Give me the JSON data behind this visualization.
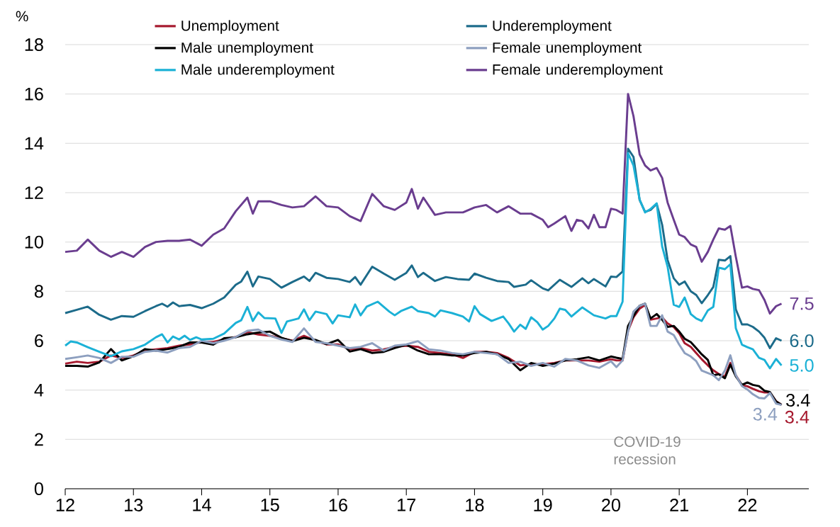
{
  "chart_data": {
    "type": "line",
    "ylabel": "%",
    "xlim": [
      12,
      22.9
    ],
    "ylim": [
      0,
      18
    ],
    "xticks": [
      12,
      13,
      14,
      15,
      16,
      17,
      18,
      19,
      20,
      21,
      22
    ],
    "yticks": [
      0,
      2,
      4,
      6,
      8,
      10,
      12,
      14,
      16,
      18
    ],
    "grid": "y",
    "legend": "top",
    "annotations": [
      "COVID-19 recession"
    ],
    "series": [
      {
        "name": "Unemployment",
        "color": "#a6192e",
        "x": [
          12,
          12.17,
          12.33,
          12.5,
          12.67,
          12.83,
          13,
          13.17,
          13.33,
          13.5,
          13.67,
          13.83,
          14,
          14.17,
          14.33,
          14.5,
          14.67,
          14.83,
          15,
          15.17,
          15.33,
          15.5,
          15.67,
          15.83,
          16,
          16.17,
          16.33,
          16.5,
          16.67,
          16.83,
          17,
          17.17,
          17.33,
          17.5,
          17.67,
          17.83,
          18,
          18.17,
          18.33,
          18.5,
          18.67,
          18.83,
          19,
          19.17,
          19.33,
          19.5,
          19.67,
          19.83,
          20,
          20.08,
          20.17,
          20.25,
          20.33,
          20.42,
          20.5,
          20.58,
          20.67,
          20.75,
          20.83,
          20.92,
          21,
          21.08,
          21.17,
          21.25,
          21.33,
          21.42,
          21.5,
          21.58,
          21.67,
          21.75,
          21.83,
          21.92,
          22,
          22.08,
          22.17,
          22.25,
          22.33,
          22.42,
          22.5
        ],
        "values": [
          5.07,
          5.15,
          5.1,
          5.15,
          5.4,
          5.3,
          5.4,
          5.6,
          5.65,
          5.7,
          5.8,
          5.85,
          5.95,
          5.95,
          6.05,
          6.15,
          6.35,
          6.25,
          6.2,
          6.1,
          6.0,
          6.2,
          6.0,
          5.85,
          5.85,
          5.65,
          5.7,
          5.6,
          5.65,
          5.75,
          5.8,
          5.75,
          5.55,
          5.5,
          5.45,
          5.3,
          5.55,
          5.55,
          5.5,
          5.3,
          5.0,
          5.05,
          5.05,
          5.1,
          5.2,
          5.2,
          5.2,
          5.15,
          5.25,
          5.2,
          5.2,
          6.4,
          6.95,
          7.3,
          7.45,
          6.85,
          6.9,
          6.95,
          6.7,
          6.55,
          6.3,
          5.9,
          5.75,
          5.5,
          5.25,
          5.0,
          4.8,
          4.65,
          4.55,
          5.1,
          4.6,
          4.2,
          4.15,
          4.05,
          3.95,
          3.9,
          3.9,
          3.55,
          3.4
        ],
        "value_labels": [
          null,
          null,
          null,
          null,
          null,
          null,
          null,
          null,
          null,
          null,
          null,
          null,
          null,
          null,
          null,
          null,
          null,
          null,
          null,
          null,
          null,
          null,
          null,
          null,
          null,
          null,
          null,
          null,
          null,
          null,
          null,
          null,
          null,
          null,
          null,
          null,
          null,
          null,
          null,
          null,
          null,
          null,
          null,
          null,
          null,
          null,
          null,
          null,
          null,
          null,
          null,
          null,
          null,
          null,
          null,
          null,
          null,
          null,
          null,
          null,
          null,
          null,
          null,
          null,
          null,
          null,
          null,
          null,
          null,
          null,
          null,
          null,
          null,
          null,
          null,
          null,
          null,
          null,
          "3.4"
        ]
      },
      {
        "name": "Underemployment",
        "color": "#1c6b8a",
        "x": [
          12,
          12.17,
          12.33,
          12.5,
          12.67,
          12.83,
          13,
          13.17,
          13.33,
          13.42,
          13.5,
          13.58,
          13.67,
          13.83,
          14,
          14.17,
          14.33,
          14.5,
          14.58,
          14.67,
          14.75,
          14.83,
          15,
          15.17,
          15.33,
          15.5,
          15.58,
          15.67,
          15.83,
          16,
          16.17,
          16.25,
          16.33,
          16.5,
          16.67,
          16.83,
          17,
          17.08,
          17.17,
          17.25,
          17.42,
          17.58,
          17.75,
          17.92,
          18,
          18.17,
          18.33,
          18.5,
          18.58,
          18.75,
          18.83,
          19,
          19.08,
          19.25,
          19.42,
          19.58,
          19.67,
          19.75,
          19.92,
          20,
          20.08,
          20.17,
          20.25,
          20.33,
          20.42,
          20.5,
          20.58,
          20.67,
          20.75,
          20.83,
          20.92,
          21,
          21.08,
          21.17,
          21.25,
          21.33,
          21.42,
          21.5,
          21.58,
          21.67,
          21.75,
          21.83,
          21.92,
          22,
          22.08,
          22.17,
          22.25,
          22.33,
          22.42,
          22.5
        ],
        "values": [
          7.12,
          7.25,
          7.38,
          7.05,
          6.85,
          7.0,
          6.97,
          7.2,
          7.4,
          7.5,
          7.38,
          7.55,
          7.4,
          7.45,
          7.32,
          7.5,
          7.75,
          8.27,
          8.4,
          8.8,
          8.2,
          8.6,
          8.5,
          8.15,
          8.38,
          8.6,
          8.42,
          8.75,
          8.55,
          8.5,
          8.38,
          8.58,
          8.27,
          9.0,
          8.72,
          8.47,
          8.75,
          9.05,
          8.58,
          8.75,
          8.42,
          8.58,
          8.5,
          8.47,
          8.72,
          8.55,
          8.42,
          8.38,
          8.18,
          8.27,
          8.45,
          8.12,
          8.04,
          8.47,
          8.18,
          8.53,
          8.33,
          8.5,
          8.2,
          8.6,
          8.58,
          8.8,
          13.78,
          13.45,
          11.7,
          11.22,
          11.3,
          11.55,
          10.7,
          9.27,
          8.53,
          8.27,
          8.4,
          8.0,
          7.85,
          7.52,
          7.85,
          8.18,
          9.28,
          9.25,
          9.43,
          7.27,
          6.66,
          6.66,
          6.56,
          6.37,
          6.12,
          5.7,
          6.1,
          6.0
        ],
        "value_labels": [
          null,
          null,
          null,
          null,
          null,
          null,
          null,
          null,
          null,
          null,
          null,
          null,
          null,
          null,
          null,
          null,
          null,
          null,
          null,
          null,
          null,
          null,
          null,
          null,
          null,
          null,
          null,
          null,
          null,
          null,
          null,
          null,
          null,
          null,
          null,
          null,
          null,
          null,
          null,
          null,
          null,
          null,
          null,
          null,
          null,
          null,
          null,
          null,
          null,
          null,
          null,
          null,
          null,
          null,
          null,
          null,
          null,
          null,
          null,
          null,
          null,
          null,
          null,
          null,
          null,
          null,
          null,
          null,
          null,
          null,
          null,
          null,
          null,
          null,
          null,
          null,
          null,
          null,
          null,
          null,
          null,
          null,
          null,
          null,
          null,
          null,
          null,
          null,
          null,
          "6.0"
        ]
      },
      {
        "name": "Male unemployment",
        "color": "#000000",
        "x": [
          12,
          12.17,
          12.33,
          12.5,
          12.67,
          12.83,
          13,
          13.17,
          13.33,
          13.5,
          13.67,
          13.83,
          14,
          14.17,
          14.33,
          14.5,
          14.67,
          14.83,
          15,
          15.17,
          15.33,
          15.5,
          15.67,
          15.83,
          16,
          16.17,
          16.33,
          16.5,
          16.67,
          16.83,
          17,
          17.17,
          17.33,
          17.5,
          17.67,
          17.83,
          18,
          18.17,
          18.33,
          18.5,
          18.67,
          18.83,
          19,
          19.17,
          19.33,
          19.5,
          19.67,
          19.83,
          20,
          20.08,
          20.17,
          20.25,
          20.33,
          20.42,
          20.5,
          20.58,
          20.67,
          20.75,
          20.83,
          20.92,
          21,
          21.08,
          21.17,
          21.25,
          21.33,
          21.42,
          21.5,
          21.58,
          21.67,
          21.75,
          21.83,
          21.92,
          22,
          22.08,
          22.17,
          22.25,
          22.33,
          22.42,
          22.5
        ],
        "values": [
          4.98,
          4.98,
          4.95,
          5.12,
          5.66,
          5.2,
          5.37,
          5.66,
          5.6,
          5.66,
          5.75,
          5.93,
          5.93,
          5.84,
          6.1,
          6.14,
          6.26,
          6.33,
          6.37,
          6.12,
          5.98,
          6.12,
          6.03,
          5.86,
          6.03,
          5.56,
          5.66,
          5.5,
          5.55,
          5.7,
          5.84,
          5.6,
          5.45,
          5.45,
          5.4,
          5.4,
          5.5,
          5.55,
          5.45,
          5.26,
          4.8,
          5.1,
          4.98,
          5.07,
          5.2,
          5.25,
          5.33,
          5.2,
          5.36,
          5.31,
          5.26,
          6.6,
          7.0,
          7.42,
          7.5,
          6.9,
          7.08,
          6.85,
          6.56,
          6.6,
          6.37,
          6.08,
          5.94,
          5.7,
          5.45,
          5.22,
          4.6,
          4.64,
          4.48,
          5.03,
          4.55,
          4.21,
          4.31,
          4.21,
          4.16,
          3.97,
          3.92,
          3.54,
          3.4
        ],
        "value_labels": [
          null,
          null,
          null,
          null,
          null,
          null,
          null,
          null,
          null,
          null,
          null,
          null,
          null,
          null,
          null,
          null,
          null,
          null,
          null,
          null,
          null,
          null,
          null,
          null,
          null,
          null,
          null,
          null,
          null,
          null,
          null,
          null,
          null,
          null,
          null,
          null,
          null,
          null,
          null,
          null,
          null,
          null,
          null,
          null,
          null,
          null,
          null,
          null,
          null,
          null,
          null,
          null,
          null,
          null,
          null,
          null,
          null,
          null,
          null,
          null,
          null,
          null,
          null,
          null,
          null,
          null,
          null,
          null,
          null,
          null,
          null,
          null,
          null,
          null,
          null,
          null,
          null,
          null,
          "3.4"
        ]
      },
      {
        "name": "Female unemployment",
        "color": "#8d9fbf",
        "x": [
          12,
          12.17,
          12.33,
          12.5,
          12.67,
          12.83,
          13,
          13.17,
          13.33,
          13.5,
          13.67,
          13.83,
          14,
          14.17,
          14.33,
          14.5,
          14.67,
          14.83,
          15,
          15.17,
          15.33,
          15.5,
          15.67,
          15.83,
          16,
          16.17,
          16.33,
          16.5,
          16.67,
          16.83,
          17,
          17.17,
          17.33,
          17.5,
          17.67,
          17.83,
          18,
          18.17,
          18.33,
          18.5,
          18.67,
          18.83,
          19,
          19.17,
          19.33,
          19.5,
          19.67,
          19.83,
          20,
          20.08,
          20.17,
          20.25,
          20.33,
          20.42,
          20.5,
          20.58,
          20.67,
          20.75,
          20.83,
          20.92,
          21,
          21.08,
          21.17,
          21.25,
          21.33,
          21.42,
          21.5,
          21.58,
          21.67,
          21.75,
          21.83,
          21.92,
          22,
          22.08,
          22.17,
          22.25,
          22.33,
          22.42,
          22.5
        ],
        "values": [
          5.26,
          5.33,
          5.4,
          5.3,
          5.1,
          5.35,
          5.35,
          5.55,
          5.6,
          5.52,
          5.7,
          5.75,
          6.0,
          5.9,
          6.0,
          6.15,
          6.4,
          6.45,
          6.2,
          6.05,
          5.95,
          6.5,
          5.95,
          5.9,
          5.8,
          5.7,
          5.75,
          5.9,
          5.6,
          5.8,
          5.85,
          5.98,
          5.65,
          5.6,
          5.5,
          5.45,
          5.55,
          5.5,
          5.45,
          5.1,
          5.15,
          4.98,
          5.1,
          4.95,
          5.26,
          5.2,
          5.0,
          4.9,
          5.17,
          4.93,
          5.2,
          6.37,
          7.18,
          7.42,
          7.5,
          6.6,
          6.6,
          7.03,
          6.37,
          6.23,
          5.84,
          5.5,
          5.36,
          5.17,
          4.79,
          4.69,
          4.6,
          4.4,
          4.79,
          5.41,
          4.6,
          4.16,
          4.02,
          3.83,
          3.68,
          3.66,
          3.88,
          3.45,
          3.4
        ],
        "value_labels": [
          null,
          null,
          null,
          null,
          null,
          null,
          null,
          null,
          null,
          null,
          null,
          null,
          null,
          null,
          null,
          null,
          null,
          null,
          null,
          null,
          null,
          null,
          null,
          null,
          null,
          null,
          null,
          null,
          null,
          null,
          null,
          null,
          null,
          null,
          null,
          null,
          null,
          null,
          null,
          null,
          null,
          null,
          null,
          null,
          null,
          null,
          null,
          null,
          null,
          null,
          null,
          null,
          null,
          null,
          null,
          null,
          null,
          null,
          null,
          null,
          null,
          null,
          null,
          null,
          null,
          null,
          null,
          null,
          null,
          null,
          null,
          null,
          null,
          null,
          null,
          null,
          null,
          null,
          "3.4"
        ]
      },
      {
        "name": "Male underemployment",
        "color": "#1bb1d6",
        "x": [
          12,
          12.08,
          12.17,
          12.33,
          12.5,
          12.67,
          12.83,
          13,
          13.17,
          13.33,
          13.42,
          13.5,
          13.58,
          13.67,
          13.75,
          13.83,
          13.92,
          14,
          14.17,
          14.33,
          14.5,
          14.58,
          14.67,
          14.75,
          14.83,
          14.92,
          15.08,
          15.17,
          15.25,
          15.42,
          15.5,
          15.58,
          15.67,
          15.83,
          15.92,
          16,
          16.17,
          16.25,
          16.33,
          16.42,
          16.58,
          16.75,
          16.83,
          16.92,
          17.08,
          17.17,
          17.33,
          17.42,
          17.5,
          17.67,
          17.83,
          17.92,
          18,
          18.08,
          18.25,
          18.42,
          18.5,
          18.58,
          18.67,
          18.75,
          18.83,
          18.92,
          19,
          19.08,
          19.17,
          19.25,
          19.33,
          19.42,
          19.58,
          19.75,
          19.92,
          20,
          20.08,
          20.17,
          20.25,
          20.33,
          20.42,
          20.5,
          20.58,
          20.67,
          20.75,
          20.83,
          20.92,
          21,
          21.08,
          21.17,
          21.25,
          21.33,
          21.42,
          21.5,
          21.58,
          21.67,
          21.75,
          21.83,
          21.92,
          22,
          22.08,
          22.17,
          22.25,
          22.33,
          22.42,
          22.5
        ],
        "values": [
          5.8,
          5.97,
          5.93,
          5.74,
          5.55,
          5.37,
          5.57,
          5.66,
          5.84,
          6.14,
          6.26,
          5.93,
          6.17,
          6.05,
          6.2,
          6.03,
          6.14,
          6.05,
          6.08,
          6.29,
          6.72,
          6.83,
          7.37,
          6.8,
          7.15,
          6.92,
          6.9,
          6.32,
          6.78,
          6.9,
          7.27,
          6.83,
          7.18,
          7.08,
          6.7,
          7.03,
          6.95,
          7.47,
          7.03,
          7.38,
          7.58,
          7.18,
          7.03,
          7.2,
          7.38,
          7.2,
          7.12,
          6.98,
          7.23,
          7.12,
          6.98,
          6.78,
          7.4,
          7.08,
          6.8,
          6.98,
          6.7,
          6.37,
          6.65,
          6.48,
          6.95,
          6.75,
          6.45,
          6.6,
          6.9,
          7.3,
          7.25,
          6.98,
          7.35,
          7.03,
          6.9,
          7.0,
          7.0,
          7.58,
          13.6,
          13.1,
          11.72,
          11.2,
          11.34,
          11.57,
          9.82,
          9.0,
          7.46,
          7.37,
          7.75,
          7.08,
          6.9,
          6.8,
          7.23,
          7.37,
          8.96,
          8.9,
          9.1,
          6.5,
          5.84,
          5.74,
          5.65,
          5.31,
          5.22,
          4.88,
          5.26,
          5.0
        ],
        "value_labels": [
          null,
          null,
          null,
          null,
          null,
          null,
          null,
          null,
          null,
          null,
          null,
          null,
          null,
          null,
          null,
          null,
          null,
          null,
          null,
          null,
          null,
          null,
          null,
          null,
          null,
          null,
          null,
          null,
          null,
          null,
          null,
          null,
          null,
          null,
          null,
          null,
          null,
          null,
          null,
          null,
          null,
          null,
          null,
          null,
          null,
          null,
          null,
          null,
          null,
          null,
          null,
          null,
          null,
          null,
          null,
          null,
          null,
          null,
          null,
          null,
          null,
          null,
          null,
          null,
          null,
          null,
          null,
          null,
          null,
          null,
          null,
          null,
          null,
          null,
          null,
          null,
          null,
          null,
          null,
          null,
          null,
          null,
          null,
          null,
          null,
          null,
          null,
          null,
          null,
          null,
          null,
          null,
          null,
          null,
          null,
          null,
          null,
          null,
          null,
          null,
          null,
          "5.0"
        ]
      },
      {
        "name": "Female underemployment",
        "color": "#6a3d8f",
        "x": [
          12,
          12.17,
          12.33,
          12.5,
          12.67,
          12.83,
          13,
          13.17,
          13.33,
          13.5,
          13.67,
          13.83,
          14,
          14.17,
          14.33,
          14.5,
          14.67,
          14.75,
          14.83,
          15,
          15.17,
          15.33,
          15.5,
          15.67,
          15.83,
          16,
          16.17,
          16.33,
          16.5,
          16.67,
          16.83,
          17,
          17.08,
          17.17,
          17.25,
          17.42,
          17.58,
          17.83,
          18,
          18.17,
          18.33,
          18.5,
          18.67,
          18.83,
          19,
          19.08,
          19.17,
          19.33,
          19.42,
          19.5,
          19.58,
          19.67,
          19.75,
          19.83,
          19.92,
          20,
          20.08,
          20.17,
          20.25,
          20.33,
          20.42,
          20.5,
          20.58,
          20.67,
          20.75,
          20.83,
          20.92,
          21,
          21.08,
          21.17,
          21.25,
          21.33,
          21.42,
          21.5,
          21.58,
          21.67,
          21.75,
          21.83,
          21.92,
          22,
          22.08,
          22.17,
          22.25,
          22.33,
          22.42,
          22.5
        ],
        "values": [
          9.6,
          9.65,
          10.1,
          9.65,
          9.4,
          9.6,
          9.4,
          9.8,
          10.0,
          10.05,
          10.05,
          10.1,
          9.85,
          10.3,
          10.55,
          11.25,
          11.8,
          11.15,
          11.65,
          11.65,
          11.5,
          11.4,
          11.45,
          11.85,
          11.45,
          11.4,
          11.05,
          10.85,
          11.95,
          11.45,
          11.3,
          11.6,
          12.15,
          11.35,
          11.8,
          11.1,
          11.2,
          11.2,
          11.4,
          11.5,
          11.2,
          11.45,
          11.15,
          11.15,
          10.9,
          10.6,
          10.75,
          11.05,
          10.45,
          10.9,
          10.85,
          10.55,
          11.1,
          10.6,
          10.6,
          11.35,
          11.3,
          11.15,
          16.0,
          15.1,
          13.55,
          13.1,
          12.9,
          13.0,
          12.6,
          11.6,
          10.9,
          10.3,
          10.2,
          9.9,
          9.8,
          9.2,
          9.6,
          10.1,
          10.55,
          10.5,
          10.65,
          9.4,
          8.15,
          8.2,
          8.1,
          8.05,
          7.65,
          7.1,
          7.4,
          7.5
        ],
        "value_labels": [
          null,
          null,
          null,
          null,
          null,
          null,
          null,
          null,
          null,
          null,
          null,
          null,
          null,
          null,
          null,
          null,
          null,
          null,
          null,
          null,
          null,
          null,
          null,
          null,
          null,
          null,
          null,
          null,
          null,
          null,
          null,
          null,
          null,
          null,
          null,
          null,
          null,
          null,
          null,
          null,
          null,
          null,
          null,
          null,
          null,
          null,
          null,
          null,
          null,
          null,
          null,
          null,
          null,
          null,
          null,
          null,
          null,
          null,
          null,
          null,
          null,
          null,
          null,
          null,
          null,
          null,
          null,
          null,
          null,
          null,
          null,
          null,
          null,
          null,
          null,
          null,
          null,
          null,
          null,
          null,
          null,
          null,
          null,
          null,
          null,
          "7.5"
        ]
      }
    ]
  }
}
